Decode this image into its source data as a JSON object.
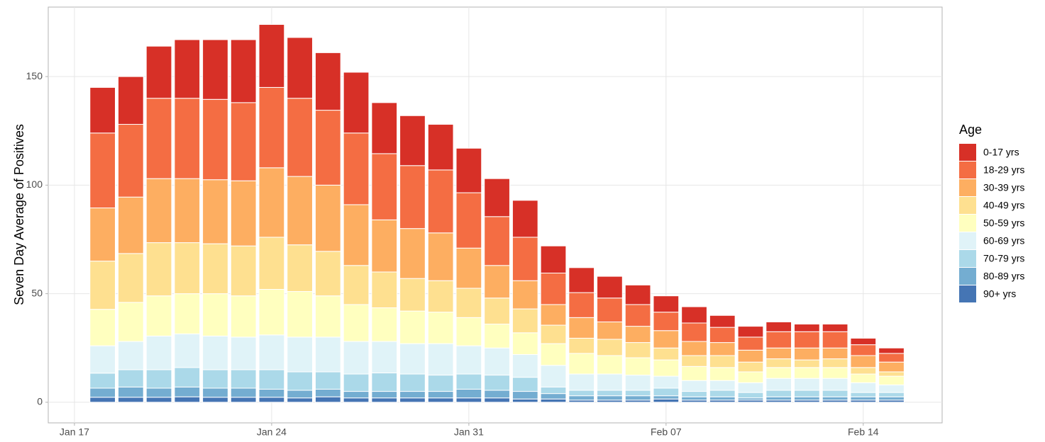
{
  "chart_data": {
    "type": "stacked_bar",
    "y_label": "Seven Day Average of Positives",
    "legend_title": "Age",
    "x": [
      1,
      2,
      3,
      4,
      5,
      6,
      7,
      8,
      9,
      10,
      11,
      12,
      13,
      14,
      15,
      16,
      17,
      18,
      19,
      20,
      21,
      22,
      23,
      24,
      25,
      26,
      27,
      28,
      29
    ],
    "xlim": [
      -0.93,
      30.8
    ],
    "xticks": [
      {
        "value": 0,
        "label": "Jan 17"
      },
      {
        "value": 7,
        "label": "Jan 24"
      },
      {
        "value": 14,
        "label": "Jan 31"
      },
      {
        "value": 21,
        "label": "Feb 07"
      },
      {
        "value": 28,
        "label": "Feb 14"
      }
    ],
    "ylim": [
      -9.5,
      182
    ],
    "yticks": [
      0,
      50,
      100,
      150
    ],
    "grid": true,
    "series": [
      {
        "name": "0-17 yrs",
        "color": "#d73027",
        "values": [
          21,
          22,
          24,
          27,
          27.5,
          29,
          29,
          28,
          26.5,
          28,
          23.5,
          23,
          21,
          20.5,
          17.5,
          17,
          12.5,
          11.5,
          10,
          9,
          7.5,
          7.5,
          5.5,
          5,
          4.5,
          3.5,
          3.5,
          3,
          2.5
        ]
      },
      {
        "name": "18-29 yrs",
        "color": "#f46d43",
        "values": [
          34.5,
          33.5,
          37,
          37,
          37,
          36,
          37,
          36,
          34.5,
          33,
          30.5,
          29,
          29,
          25.5,
          22.5,
          20,
          14.5,
          11.5,
          11,
          10,
          8.5,
          8.5,
          7,
          6,
          7.5,
          7.5,
          7.5,
          5,
          4
        ]
      },
      {
        "name": "30-39 yrs",
        "color": "#fdae61",
        "values": [
          24.5,
          26,
          29.5,
          29.5,
          29.5,
          30,
          32,
          31.5,
          30.5,
          28,
          24,
          23,
          22,
          18.5,
          15,
          13,
          9.5,
          9.5,
          8,
          7.5,
          8,
          6.5,
          6,
          5.5,
          5,
          5.5,
          5,
          5.5,
          4.5
        ]
      },
      {
        "name": "40-49 yrs",
        "color": "#fee090",
        "values": [
          22.2,
          22.5,
          24.5,
          23.5,
          23,
          23,
          24,
          21.5,
          20.5,
          18,
          16.5,
          15,
          14.5,
          13.5,
          12,
          11,
          8.5,
          7,
          7.5,
          7,
          5.5,
          5,
          5.5,
          4.5,
          4,
          3.5,
          4,
          3,
          2
        ]
      },
      {
        "name": "50-59 yrs",
        "color": "#ffffbf",
        "values": [
          16.8,
          18,
          18.5,
          18.5,
          19.5,
          19,
          21,
          21,
          19,
          17,
          15.5,
          15,
          14.5,
          13,
          11,
          10,
          10,
          9.5,
          8.5,
          8,
          7.5,
          6.5,
          6,
          5,
          5,
          5,
          5,
          4,
          4
        ]
      },
      {
        "name": "60-69 yrs",
        "color": "#e0f3f8",
        "values": [
          12.6,
          13,
          15.5,
          15.5,
          15.5,
          15,
          16,
          16,
          16,
          15,
          14.5,
          14,
          14.5,
          13,
          12.5,
          10.5,
          10,
          7.5,
          7.5,
          7,
          5.5,
          5,
          4.5,
          4.5,
          5.5,
          5.5,
          5.5,
          4.5,
          3.5
        ]
      },
      {
        "name": "70-79 yrs",
        "color": "#abd9e9",
        "values": [
          6.9,
          8,
          8.5,
          9,
          8.5,
          8.5,
          9,
          8.5,
          8,
          8,
          8.5,
          8,
          7.5,
          7,
          7,
          6.5,
          3,
          2.5,
          2.5,
          2.5,
          3.5,
          2.5,
          3,
          2.5,
          3,
          3,
          3,
          2,
          2
        ]
      },
      {
        "name": "80-89 yrs",
        "color": "#74add1",
        "values": [
          4.2,
          4.7,
          4.2,
          4.5,
          4.2,
          4.2,
          3.7,
          3.5,
          3.5,
          3,
          3,
          3,
          3,
          4,
          3.5,
          3.5,
          2.5,
          2,
          2,
          2,
          1.5,
          1.5,
          1.5,
          1,
          1.5,
          1.5,
          1.5,
          1.5,
          1.5
        ]
      },
      {
        "name": "90+ yrs",
        "color": "#4575b4",
        "values": [
          2.3,
          2.3,
          2.3,
          2.5,
          2.3,
          2.3,
          2.3,
          2,
          2.5,
          2,
          2,
          2,
          2,
          2,
          2,
          1.5,
          1.5,
          1,
          1,
          1,
          1.5,
          1,
          1,
          1,
          1,
          1,
          1,
          1,
          1
        ]
      }
    ]
  }
}
